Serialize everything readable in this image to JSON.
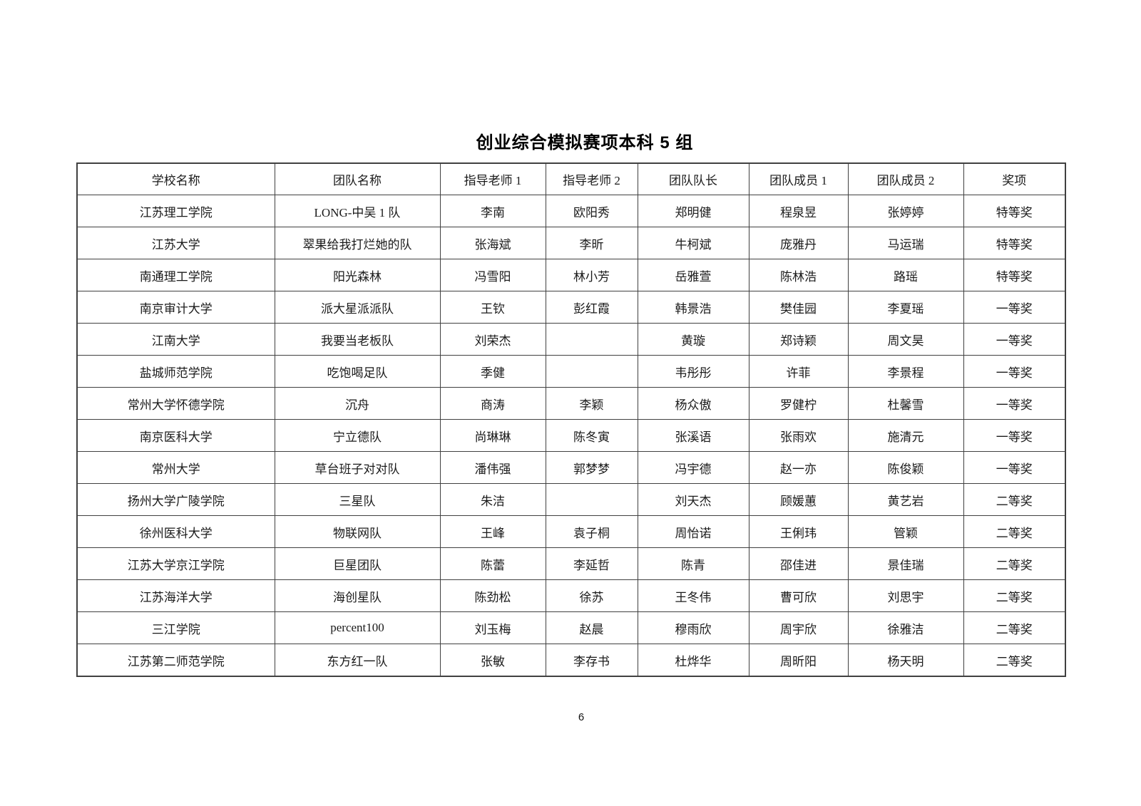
{
  "page": {
    "title": "创业综合模拟赛项本科 5 组",
    "page_number": "6"
  },
  "table": {
    "headers": [
      "学校名称",
      "团队名称",
      "指导老师 1",
      "指导老师 2",
      "团队队长",
      "团队成员 1",
      "团队成员 2",
      "奖项"
    ],
    "rows": [
      [
        "江苏理工学院",
        "LONG-中吴 1 队",
        "李南",
        "欧阳秀",
        "郑明健",
        "程泉昱",
        "张婷婷",
        "特等奖"
      ],
      [
        "江苏大学",
        "翠果给我打烂她的队",
        "张海斌",
        "李昕",
        "牛柯斌",
        "庞雅丹",
        "马运瑞",
        "特等奖"
      ],
      [
        "南通理工学院",
        "阳光森林",
        "冯雪阳",
        "林小芳",
        "岳雅萱",
        "陈林浩",
        "路瑶",
        "特等奖"
      ],
      [
        "南京审计大学",
        "派大星派派队",
        "王钦",
        "彭红霞",
        "韩景浩",
        "樊佳园",
        "李夏瑶",
        "一等奖"
      ],
      [
        "江南大学",
        "我要当老板队",
        "刘荣杰",
        "",
        "黄璇",
        "郑诗颖",
        "周文昊",
        "一等奖"
      ],
      [
        "盐城师范学院",
        "吃饱喝足队",
        "季健",
        "",
        "韦彤彤",
        "许菲",
        "李景程",
        "一等奖"
      ],
      [
        "常州大学怀德学院",
        "沉舟",
        "商涛",
        "李颖",
        "杨众傲",
        "罗健柠",
        "杜馨雪",
        "一等奖"
      ],
      [
        "南京医科大学",
        "宁立德队",
        "尚琳琳",
        "陈冬寅",
        "张溪语",
        "张雨欢",
        "施清元",
        "一等奖"
      ],
      [
        "常州大学",
        "草台班子对对队",
        "潘伟强",
        "郭梦梦",
        "冯宇德",
        "赵一亦",
        "陈俊颖",
        "一等奖"
      ],
      [
        "扬州大学广陵学院",
        "三星队",
        "朱洁",
        "",
        "刘天杰",
        "顾媛蕙",
        "黄艺岩",
        "二等奖"
      ],
      [
        "徐州医科大学",
        "物联网队",
        "王峰",
        "袁子桐",
        "周怡诺",
        "王俐玮",
        "管颖",
        "二等奖"
      ],
      [
        "江苏大学京江学院",
        "巨星团队",
        "陈蕾",
        "李延哲",
        "陈青",
        "邵佳进",
        "景佳瑞",
        "二等奖"
      ],
      [
        "江苏海洋大学",
        "海创星队",
        "陈劲松",
        "徐苏",
        "王冬伟",
        "曹可欣",
        "刘思宇",
        "二等奖"
      ],
      [
        "三江学院",
        "percent100",
        "刘玉梅",
        "赵晨",
        "穆雨欣",
        "周宇欣",
        "徐雅洁",
        "二等奖"
      ],
      [
        "江苏第二师范学院",
        "东方红一队",
        "张敏",
        "李存书",
        "杜烨华",
        "周昕阳",
        "杨天明",
        "二等奖"
      ]
    ]
  }
}
